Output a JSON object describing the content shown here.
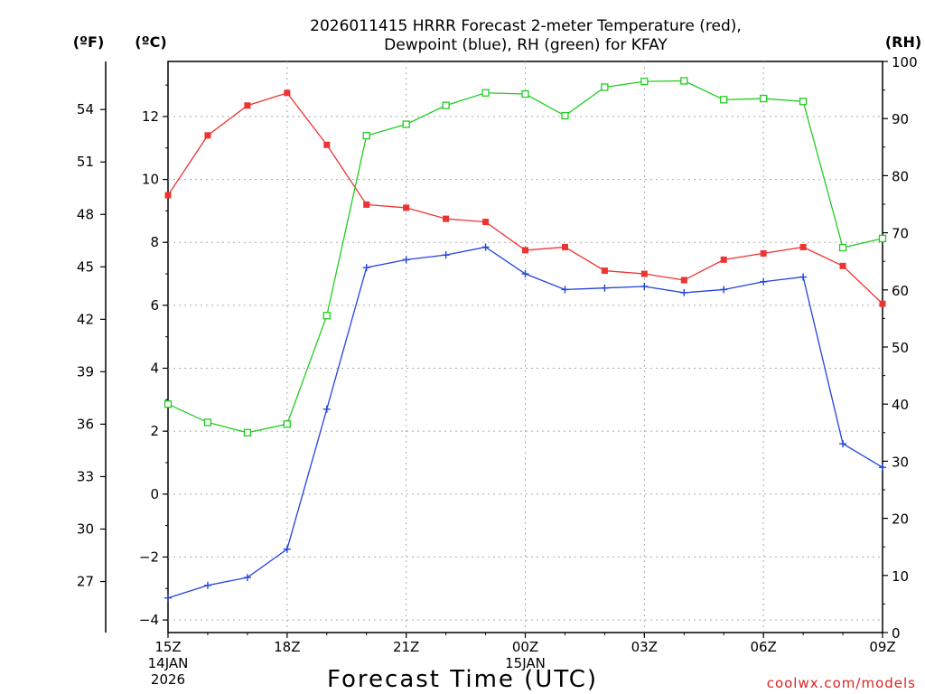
{
  "chart_data": {
    "type": "line",
    "title_line1": "2026011415 HRRR Forecast 2-meter Temperature (red),",
    "title_line2": "Dewpoint (blue), RH (green) for KFAY",
    "xlabel": "Forecast Time (UTC)",
    "credit": "coolwx.com/models",
    "axis_units": {
      "left_f": "(ºF)",
      "left_c": "(ºC)",
      "right_rh": "(RH)"
    },
    "x_hours": [
      15,
      16,
      17,
      18,
      19,
      20,
      21,
      22,
      23,
      24,
      25,
      26,
      27,
      28,
      29,
      30,
      31,
      32,
      33
    ],
    "x_range": [
      15,
      33
    ],
    "x_ticks": [
      {
        "hour": 15,
        "label": "15Z",
        "sub1": "14JAN",
        "sub2": "2026"
      },
      {
        "hour": 18,
        "label": "18Z",
        "sub1": "",
        "sub2": ""
      },
      {
        "hour": 21,
        "label": "21Z",
        "sub1": "",
        "sub2": ""
      },
      {
        "hour": 24,
        "label": "00Z",
        "sub1": "15JAN",
        "sub2": ""
      },
      {
        "hour": 27,
        "label": "03Z",
        "sub1": "",
        "sub2": ""
      },
      {
        "hour": 30,
        "label": "06Z",
        "sub1": "",
        "sub2": ""
      },
      {
        "hour": 33,
        "label": "09Z",
        "sub1": "",
        "sub2": ""
      }
    ],
    "ylim_c": [
      -4.4,
      13.75
    ],
    "y_ticks_c": [
      "-4",
      "-2",
      "0",
      "2",
      "4",
      "6",
      "8",
      "10",
      "12"
    ],
    "y_ticks_f": [
      "27",
      "30",
      "33",
      "36",
      "39",
      "42",
      "45",
      "48",
      "51",
      "54"
    ],
    "ylim_rh": [
      0,
      100
    ],
    "y_ticks_rh": [
      "0",
      "10",
      "20",
      "30",
      "40",
      "50",
      "60",
      "70",
      "80",
      "90",
      "100"
    ],
    "series": [
      {
        "name": "Temperature",
        "axis": "c",
        "color": "#ee3333",
        "marker": "filled-square",
        "values": [
          9.5,
          11.4,
          12.35,
          12.75,
          11.1,
          9.2,
          9.1,
          8.75,
          8.65,
          7.75,
          7.85,
          7.1,
          7.0,
          6.8,
          7.45,
          7.65,
          7.85,
          7.25,
          6.05
        ]
      },
      {
        "name": "Dewpoint",
        "axis": "c",
        "color": "#2244dd",
        "marker": "plus",
        "values": [
          -3.3,
          -2.9,
          -2.65,
          -1.75,
          2.7,
          7.2,
          7.45,
          7.6,
          7.85,
          7.0,
          6.5,
          6.55,
          6.6,
          6.4,
          6.5,
          6.75,
          6.9,
          1.6,
          0.85
        ]
      },
      {
        "name": "RH",
        "axis": "rh",
        "color": "#22cc22",
        "marker": "open-square",
        "values": [
          40,
          36.8,
          35,
          36.5,
          55.5,
          87,
          89,
          92.3,
          94.5,
          94.3,
          90.5,
          95.5,
          96.5,
          96.6,
          93.3,
          93.5,
          93,
          67.4,
          69
        ]
      }
    ]
  }
}
